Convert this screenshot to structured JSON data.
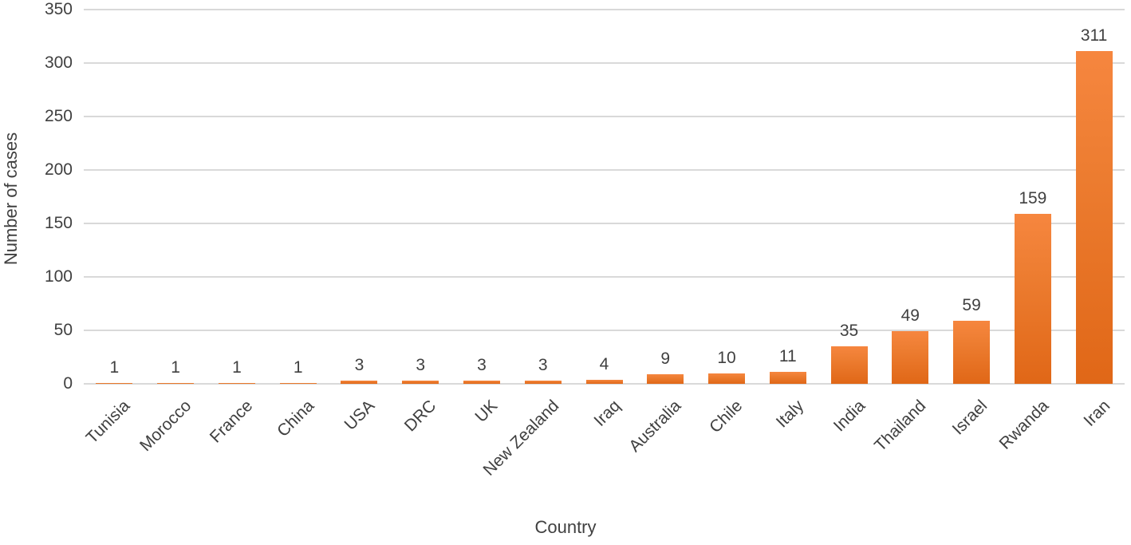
{
  "chart_data": {
    "type": "bar",
    "title": "",
    "xlabel": "Country",
    "ylabel": "Number of cases",
    "categories": [
      "Tunisia",
      "Morocco",
      "France",
      "China",
      "USA",
      "DRC",
      "UK",
      "New Zealand",
      "Iraq",
      "Australia",
      "Chile",
      "Italy",
      "India",
      "Thailand",
      "Israel",
      "Rwanda",
      "Iran"
    ],
    "values": [
      1,
      1,
      1,
      1,
      3,
      3,
      3,
      3,
      4,
      9,
      10,
      11,
      35,
      49,
      59,
      159,
      311
    ],
    "ylim": [
      0,
      350
    ],
    "ytick_step": 50,
    "ytick_labels": [
      "0",
      "50",
      "100",
      "150",
      "200",
      "250",
      "300",
      "350"
    ],
    "grid": "horizontal",
    "legend": "none",
    "bar_color": "#ED7D31",
    "gridline_color": "#D9D9D9",
    "text_color": "#404040",
    "data_labels_shown": true
  }
}
